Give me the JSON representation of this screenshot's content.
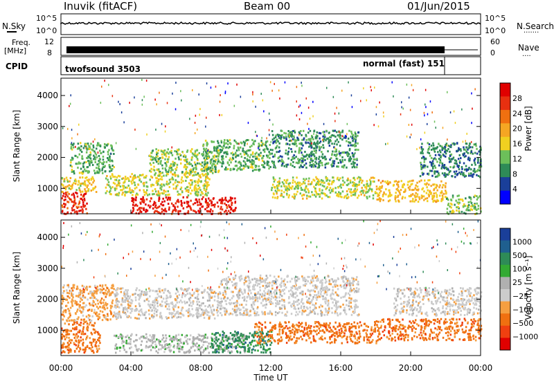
{
  "header": {
    "station": "Inuvik (fitACF)",
    "beam": "Beam 00",
    "date": "01/Jun/2015"
  },
  "nsky_panel": {
    "left_label": "N.Sky",
    "left_ticks": [
      "10^5",
      "10^0"
    ],
    "right_ticks": [
      "10^5",
      "10^0"
    ],
    "right_label": "N.Search",
    "right_legend_dots": "·······"
  },
  "freq_panel": {
    "left_label_1": "Freq.",
    "left_label_2": "[MHz]",
    "left_ticks": [
      "12",
      "8"
    ],
    "right_ticks": [
      "60",
      "0"
    ],
    "right_label": "Nave",
    "right_legend_dots": "····"
  },
  "cpid_panel": {
    "label": "CPID",
    "mode_1": "twofsound 3503",
    "mode_2": "normal (fast) 151"
  },
  "colors": {
    "power": [
      "#0000ff",
      "#1a3f9a",
      "#2e8b57",
      "#6cbf5a",
      "#f0d020",
      "#f5a623",
      "#f07010",
      "#e83010",
      "#e00000"
    ],
    "velocity": [
      "#e00000",
      "#f04010",
      "#f07010",
      "#f59f40",
      "#cccccc",
      "#b0b0b0",
      "#33aa33",
      "#2e8b57",
      "#1f5f8f",
      "#1a3f9a"
    ]
  },
  "chart_data": [
    {
      "type": "heatmap",
      "name": "Power",
      "ylabel": "Slant Range [km]",
      "yticks": [
        "1000",
        "2000",
        "3000",
        "4000"
      ],
      "ylim": [
        180,
        4560
      ],
      "xticks": [
        "00:00",
        "04:00",
        "08:00",
        "12:00",
        "16:00",
        "20:00",
        "00:00"
      ],
      "xlim_hours": [
        0,
        24
      ],
      "colorbar": {
        "label": "Power [dB]",
        "ticks": [
          "4",
          "8",
          "12",
          "16",
          "20",
          "24",
          "28"
        ],
        "range": [
          0,
          30
        ]
      },
      "echo_regions": [
        {
          "t0": 0.0,
          "t1": 1.5,
          "r0": 200,
          "r1": 900,
          "level": 27
        },
        {
          "t0": 0.0,
          "t1": 2.0,
          "r0": 900,
          "r1": 1400,
          "level": 16
        },
        {
          "t0": 0.5,
          "t1": 3.0,
          "r0": 1500,
          "r1": 2500,
          "level": 10
        },
        {
          "t0": 4.0,
          "t1": 10.0,
          "r0": 200,
          "r1": 750,
          "level": 28
        },
        {
          "t0": 2.5,
          "t1": 8.5,
          "r0": 800,
          "r1": 1500,
          "level": 14
        },
        {
          "t0": 5.0,
          "t1": 9.0,
          "r0": 1500,
          "r1": 2300,
          "level": 12
        },
        {
          "t0": 8.0,
          "t1": 12.0,
          "r0": 1600,
          "r1": 2600,
          "level": 10
        },
        {
          "t0": 12.0,
          "t1": 17.0,
          "r0": 1700,
          "r1": 2900,
          "level": 8
        },
        {
          "t0": 12.0,
          "t1": 18.0,
          "r0": 700,
          "r1": 1400,
          "level": 14
        },
        {
          "t0": 18.0,
          "t1": 22.0,
          "r0": 600,
          "r1": 1300,
          "level": 17
        },
        {
          "t0": 20.5,
          "t1": 24.0,
          "r0": 1400,
          "r1": 2500,
          "level": 7
        },
        {
          "t0": 22.0,
          "t1": 24.0,
          "r0": 200,
          "r1": 800,
          "level": 12
        }
      ]
    },
    {
      "type": "heatmap",
      "name": "Velocity",
      "ylabel": "Slant Range [km]",
      "yticks": [
        "1000",
        "2000",
        "3000",
        "4000"
      ],
      "ylim": [
        180,
        4560
      ],
      "xticks": [
        "00:00",
        "04:00",
        "08:00",
        "12:00",
        "16:00",
        "20:00",
        "00:00"
      ],
      "xlabel": "Time UT",
      "xlim_hours": [
        0,
        24
      ],
      "colorbar": {
        "label": "Velocity [m s⁻¹]",
        "ticks": [
          "1000",
          "500",
          "100",
          "25",
          "−25",
          "−100",
          "−500",
          "−1000"
        ]
      },
      "echo_regions": [
        {
          "t0": 0.0,
          "t1": 2.2,
          "r0": 300,
          "r1": 1300,
          "level": "-500"
        },
        {
          "t0": 0.0,
          "t1": 3.0,
          "r0": 1300,
          "r1": 2500,
          "level": "-100"
        },
        {
          "t0": 3.0,
          "t1": 10.5,
          "r0": 300,
          "r1": 900,
          "level": "-25"
        },
        {
          "t0": 3.0,
          "t1": 9.0,
          "r0": 1400,
          "r1": 2400,
          "level": "25"
        },
        {
          "t0": 8.5,
          "t1": 12.0,
          "r0": 300,
          "r1": 1000,
          "level": "100"
        },
        {
          "t0": 9.0,
          "t1": 17.0,
          "r0": 1500,
          "r1": 2800,
          "level": "25"
        },
        {
          "t0": 11.0,
          "t1": 18.0,
          "r0": 600,
          "r1": 1300,
          "level": "-500"
        },
        {
          "t0": 18.0,
          "t1": 24.0,
          "r0": 700,
          "r1": 1400,
          "level": "-500"
        },
        {
          "t0": 19.0,
          "t1": 24.0,
          "r0": 1500,
          "r1": 2400,
          "level": "25"
        }
      ]
    }
  ]
}
